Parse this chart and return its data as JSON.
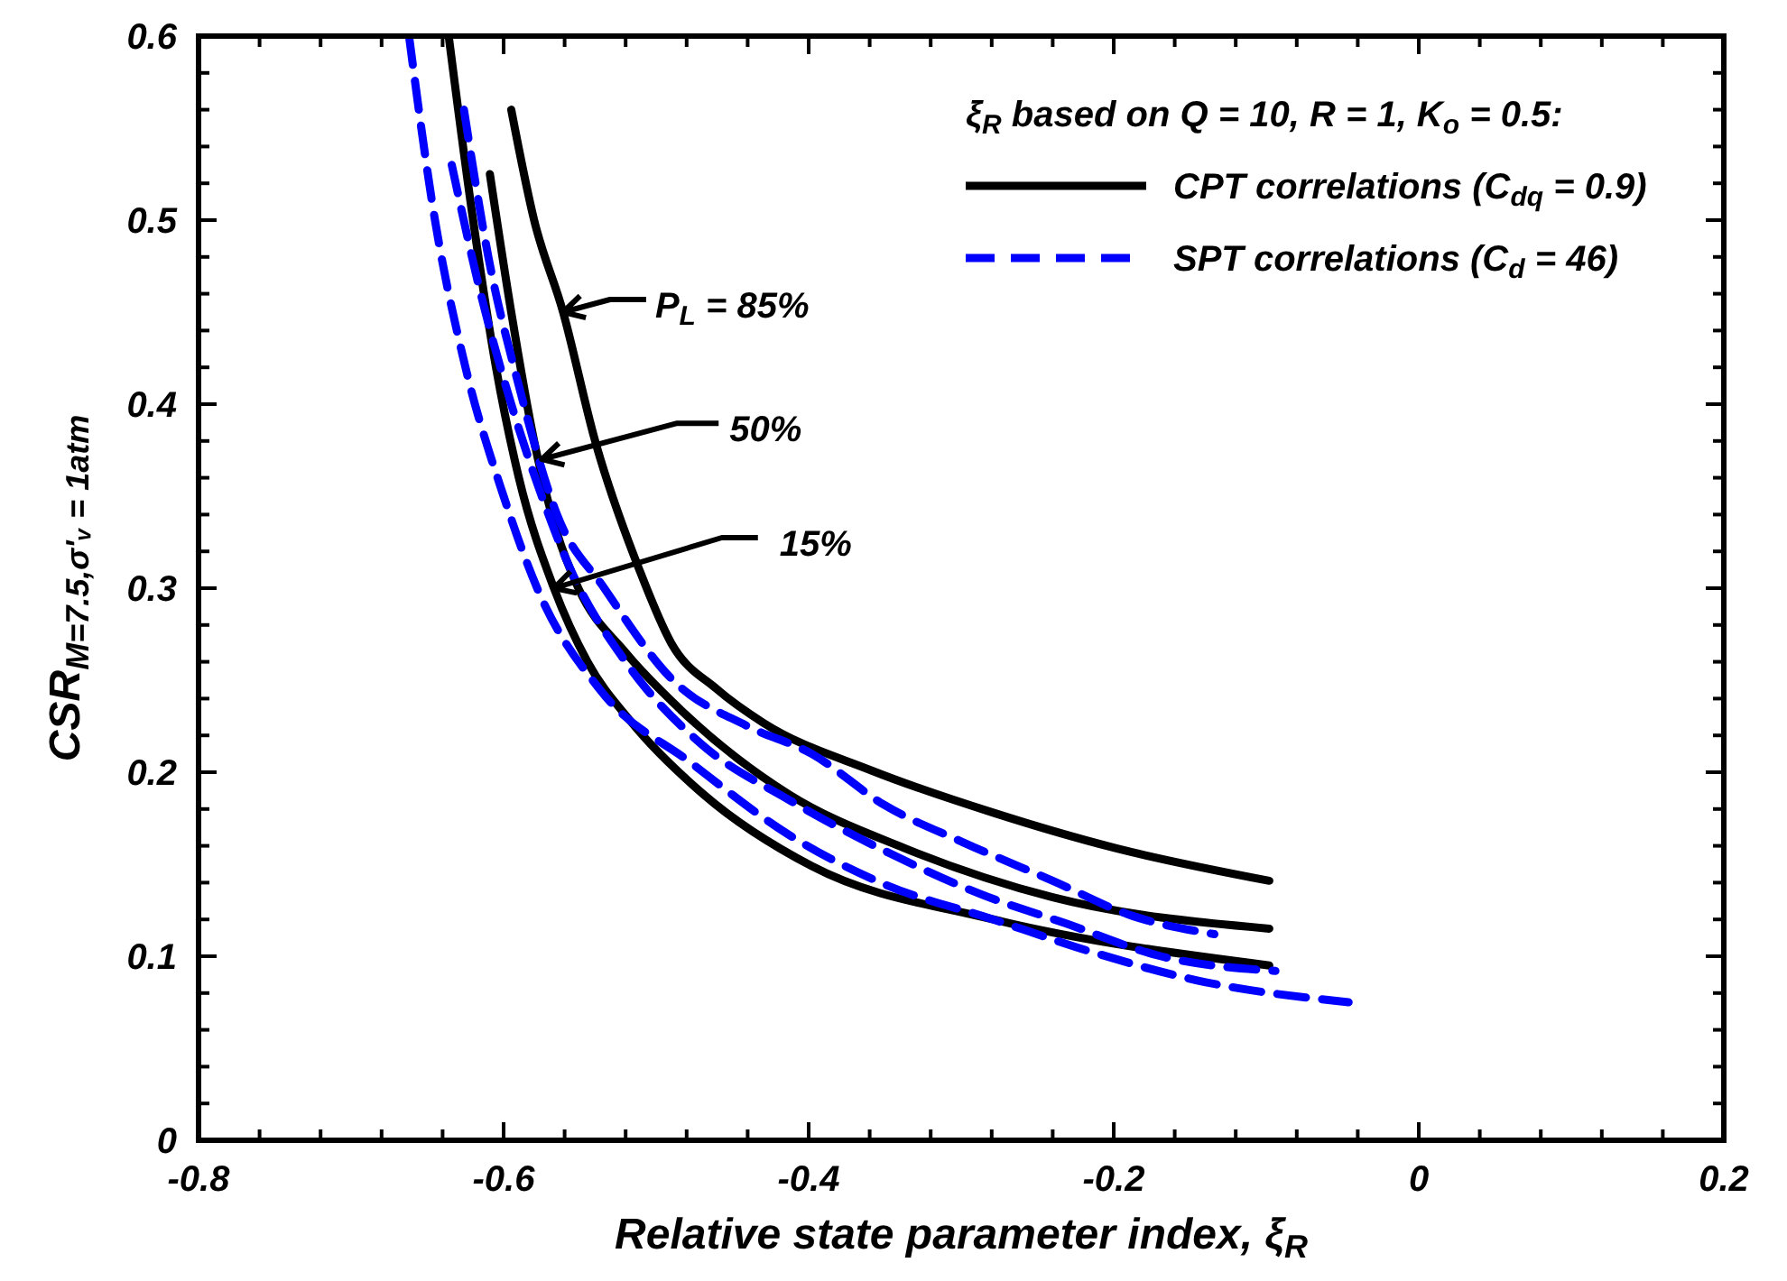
{
  "chart_data": {
    "type": "line",
    "xlabel": "Relative state parameter index, ξ$_{R}$",
    "ylabel": "CSR$_{M=7.5,σ'ᵥ = 1atm}$",
    "legend_title": "ξ$_{R}$ based on Q = 10, R = 1, K$_{o}$ = 0.5:",
    "legend": "top right",
    "grid": false,
    "marker": "none",
    "xlim": [
      -0.8,
      0.2
    ],
    "ylim": [
      0,
      0.6
    ],
    "xticks": [
      -0.8,
      {
        "value": -0.76,
        "label": null
      },
      {
        "value": -0.72,
        "label": null
      },
      {
        "value": -0.68,
        "label": null
      },
      {
        "value": -0.64,
        "label": null
      },
      -0.6,
      {
        "value": -0.56,
        "label": null
      },
      {
        "value": -0.52,
        "label": null
      },
      {
        "value": -0.48,
        "label": null
      },
      {
        "value": -0.44,
        "label": null
      },
      -0.4,
      {
        "value": -0.36,
        "label": null
      },
      {
        "value": -0.32,
        "label": null
      },
      {
        "value": -0.28,
        "label": null
      },
      {
        "value": -0.24,
        "label": null
      },
      -0.2,
      {
        "value": -0.16,
        "label": null
      },
      {
        "value": -0.12,
        "label": null
      },
      {
        "value": -0.08,
        "label": null
      },
      {
        "value": -0.04,
        "label": null
      },
      0,
      {
        "value": 0.04,
        "label": null
      },
      {
        "value": 0.08,
        "label": null
      },
      {
        "value": 0.12,
        "label": null
      },
      {
        "value": 0.16,
        "label": null
      },
      0.2
    ],
    "yticks": [
      0,
      {
        "value": 0.02,
        "label": null
      },
      {
        "value": 0.04,
        "label": null
      },
      {
        "value": 0.06,
        "label": null
      },
      {
        "value": 0.08,
        "label": null
      },
      0.1,
      {
        "value": 0.12,
        "label": null
      },
      {
        "value": 0.14,
        "label": null
      },
      {
        "value": 0.16,
        "label": null
      },
      {
        "value": 0.18,
        "label": null
      },
      0.2,
      {
        "value": 0.22,
        "label": null
      },
      {
        "value": 0.24,
        "label": null
      },
      {
        "value": 0.26,
        "label": null
      },
      {
        "value": 0.28,
        "label": null
      },
      0.3,
      {
        "value": 0.32,
        "label": null
      },
      {
        "value": 0.34,
        "label": null
      },
      {
        "value": 0.36,
        "label": null
      },
      {
        "value": 0.38,
        "label": null
      },
      0.4,
      {
        "value": 0.42,
        "label": null
      },
      {
        "value": 0.44,
        "label": null
      },
      {
        "value": 0.46,
        "label": null
      },
      {
        "value": 0.48,
        "label": null
      },
      0.5,
      {
        "value": 0.52,
        "label": null
      },
      {
        "value": 0.54,
        "label": null
      },
      {
        "value": 0.56,
        "label": null
      },
      {
        "value": 0.58,
        "label": null
      },
      0.6
    ],
    "series": [
      {
        "name": "CPT correlations (C$_{dq}$ = 0.9)",
        "color": "#000000",
        "line_style": "solid",
        "x": [
          -0.595,
          -0.58,
          -0.561,
          -0.54,
          -0.511,
          -0.49,
          -0.46,
          -0.43,
          -0.359,
          -0.279,
          -0.2,
          -0.098
        ],
        "values": [
          0.56,
          0.5,
          0.45,
          0.38,
          0.31,
          0.27,
          0.245,
          0.227,
          0.201,
          0.178,
          0.159,
          0.141
        ]
      },
      {
        "color": "#000000",
        "line_style": "solid",
        "x": [
          -0.609,
          -0.595,
          -0.58,
          -0.565,
          -0.551,
          -0.52,
          -0.484,
          -0.413,
          -0.338,
          -0.24,
          -0.098
        ],
        "values": [
          0.525,
          0.45,
          0.38,
          0.33,
          0.3,
          0.265,
          0.234,
          0.188,
          0.159,
          0.132,
          0.115
        ]
      },
      {
        "color": "#000000",
        "line_style": "solid",
        "x": [
          -0.636,
          -0.62,
          -0.605,
          -0.59,
          -0.567,
          -0.545,
          -0.516,
          -0.469,
          -0.398,
          -0.279,
          -0.098
        ],
        "values": [
          0.6,
          0.5,
          0.42,
          0.36,
          0.3,
          0.26,
          0.227,
          0.188,
          0.149,
          0.12,
          0.095
        ]
      },
      {
        "name": "SPT correlations (C$_{d}$ = 46)",
        "color": "#0000ff",
        "line_style": "dashed",
        "x": [
          -0.662,
          -0.645,
          -0.625,
          -0.6,
          -0.578,
          -0.536,
          -0.477,
          -0.413,
          -0.35,
          -0.279,
          -0.217,
          -0.146,
          -0.046
        ],
        "values": [
          0.6,
          0.5,
          0.42,
          0.35,
          0.3,
          0.244,
          0.205,
          0.166,
          0.139,
          0.12,
          0.103,
          0.087,
          0.075
        ]
      },
      {
        "color": "#0000ff",
        "line_style": "dashed",
        "x": [
          -0.634,
          -0.615,
          -0.595,
          -0.575,
          -0.556,
          -0.52,
          -0.47,
          -0.413,
          -0.347,
          -0.288,
          -0.232,
          -0.169,
          -0.094
        ],
        "values": [
          0.53,
          0.46,
          0.4,
          0.35,
          0.31,
          0.26,
          0.215,
          0.185,
          0.156,
          0.134,
          0.118,
          0.1,
          0.092
        ]
      },
      {
        "color": "#0000ff",
        "line_style": "dashed",
        "x": [
          -0.626,
          -0.61,
          -0.59,
          -0.565,
          -0.534,
          -0.489,
          -0.44,
          -0.398,
          -0.35,
          -0.299,
          -0.24,
          -0.188,
          -0.134
        ],
        "values": [
          0.56,
          0.48,
          0.41,
          0.34,
          0.3,
          0.25,
          0.225,
          0.21,
          0.182,
          0.162,
          0.141,
          0.122,
          0.112
        ]
      }
    ],
    "annotations": [
      {
        "text": "P$_{L}$ = 85%",
        "x": -0.561,
        "y": 0.45
      },
      {
        "text": "50%",
        "x": -0.575,
        "y": 0.37
      },
      {
        "text": "15%",
        "x": -0.567,
        "y": 0.3
      }
    ]
  }
}
